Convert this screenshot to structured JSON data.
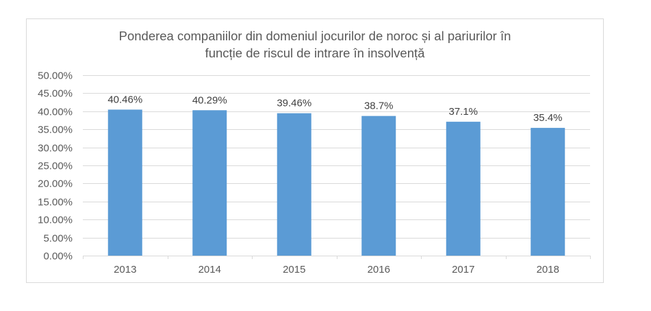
{
  "chart_data": {
    "type": "bar",
    "title": "Ponderea companiilor din domeniul jocurilor de noroc și al pariurilor în funcție de riscul de intrare în insolvență",
    "title_lines": [
      "Ponderea companiilor din domeniul jocurilor de noroc și al pariurilor în",
      "funcție de riscul de intrare în insolvență"
    ],
    "xlabel": "",
    "ylabel": "",
    "categories": [
      "2013",
      "2014",
      "2015",
      "2016",
      "2017",
      "2018"
    ],
    "values": [
      40.46,
      40.29,
      39.46,
      38.7,
      37.1,
      35.4
    ],
    "data_labels": [
      "40.46%",
      "40.29%",
      "39.46%",
      "38.7%",
      "37.1%",
      "35.4%"
    ],
    "ylim": [
      0,
      50
    ],
    "ytick_step": 5,
    "ytick_labels": [
      "0.00%",
      "5.00%",
      "10.00%",
      "15.00%",
      "20.00%",
      "25.00%",
      "30.00%",
      "35.00%",
      "40.00%",
      "45.00%",
      "50.00%"
    ],
    "grid": true,
    "legend": "none",
    "bar_color": "#5b9bd5"
  }
}
